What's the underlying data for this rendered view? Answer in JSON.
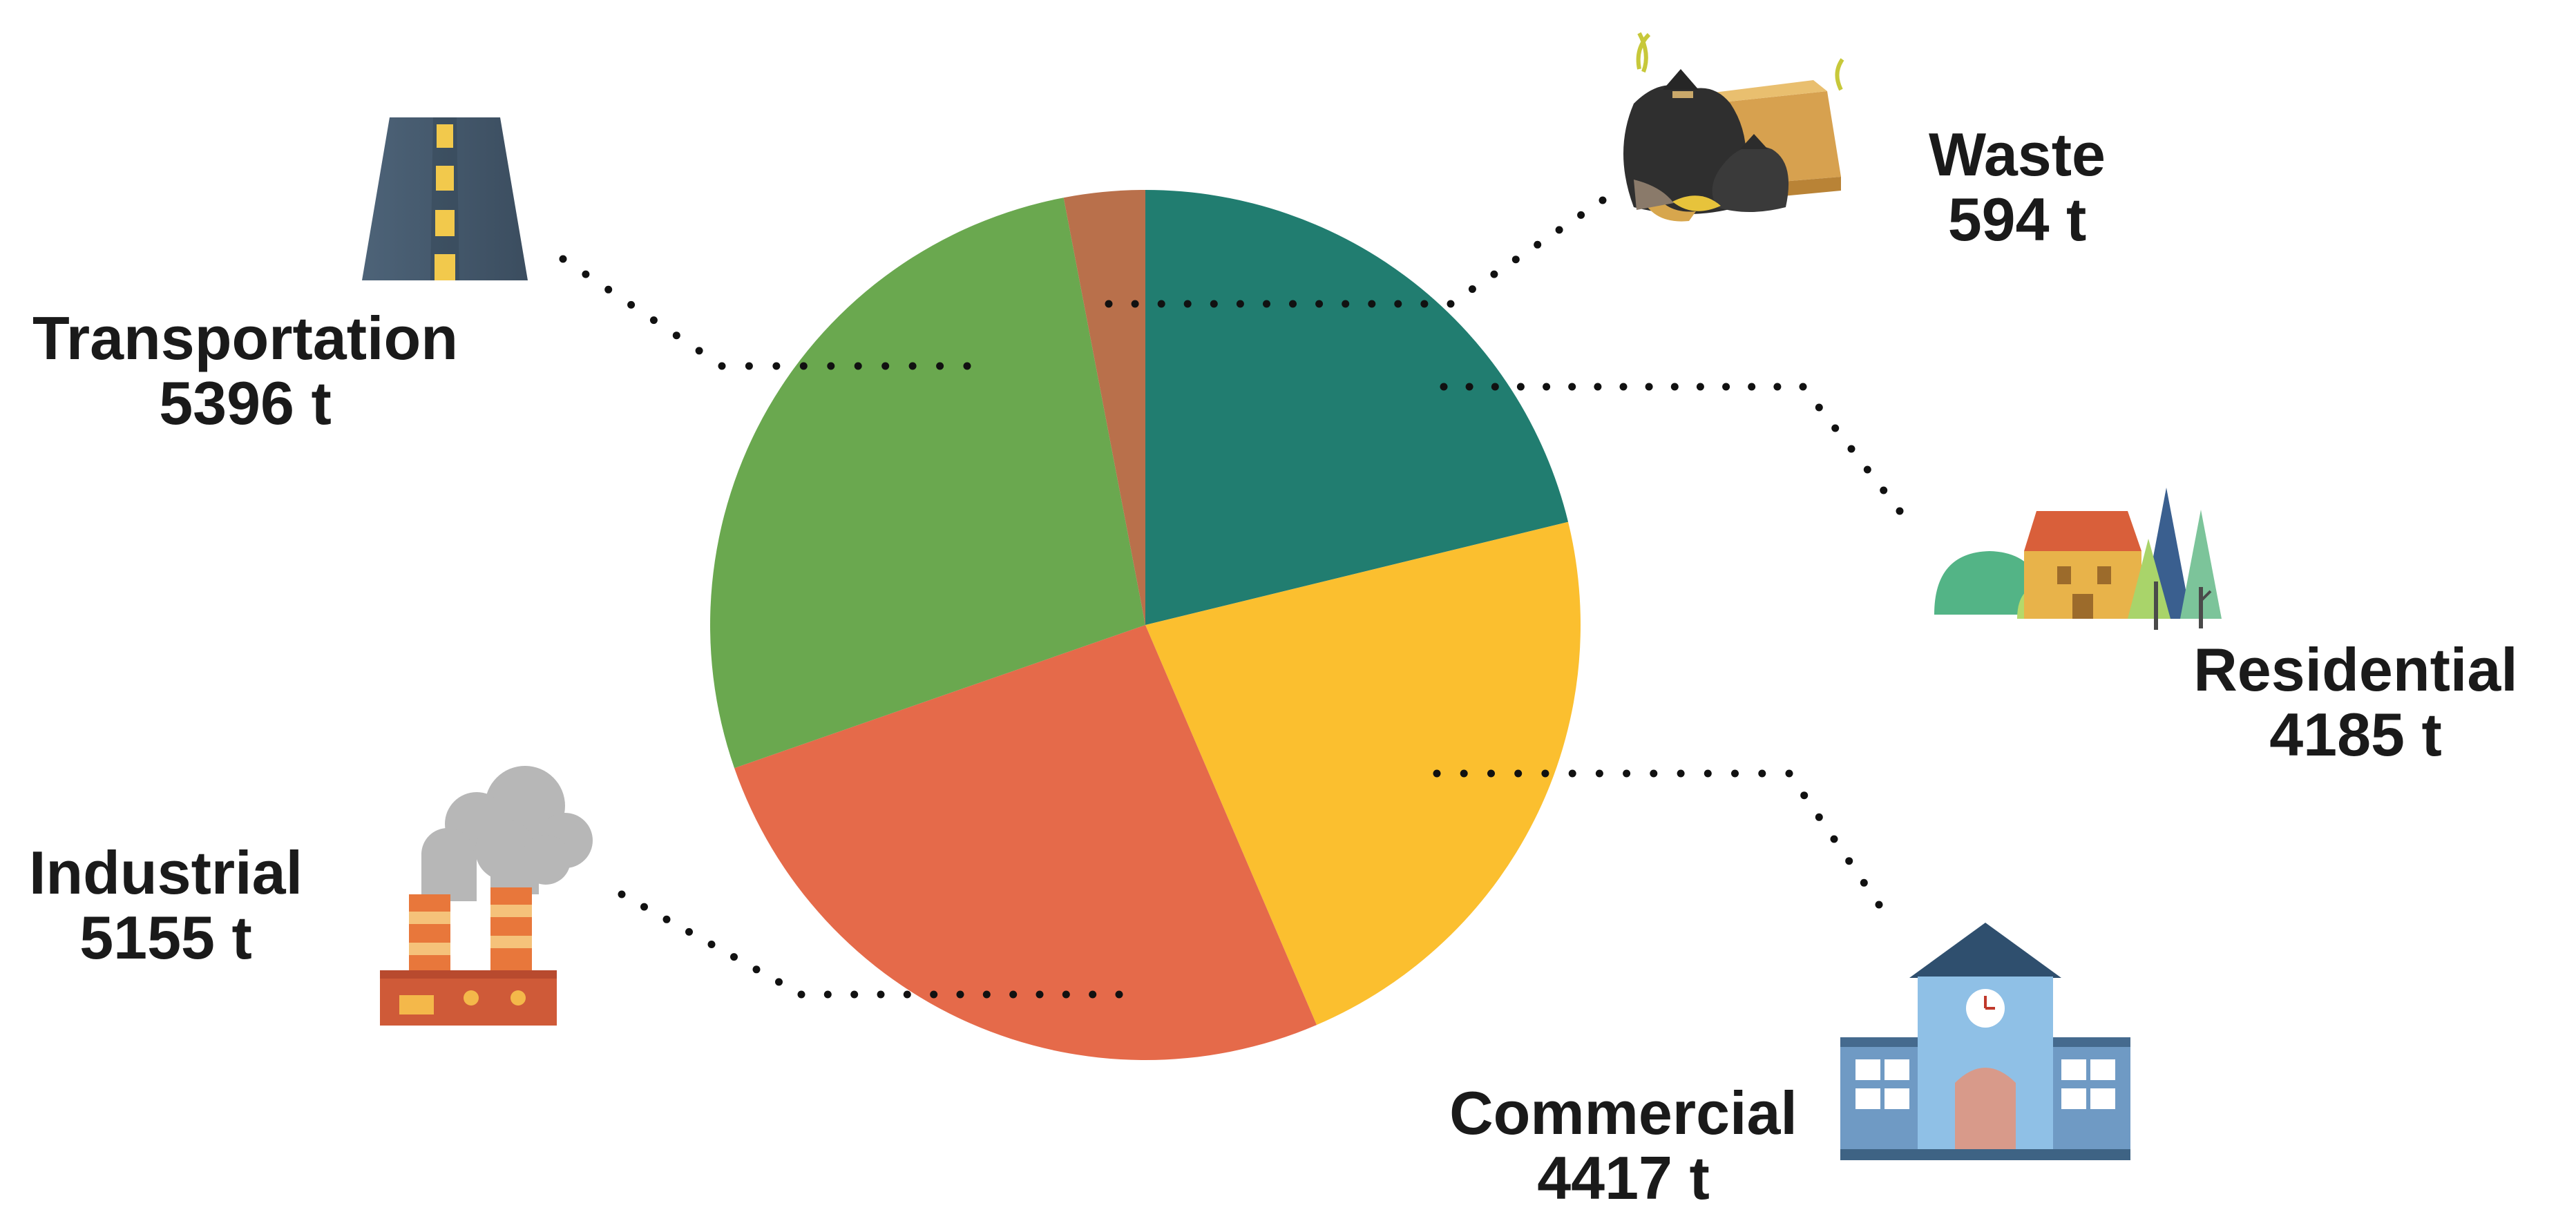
{
  "chart_data": {
    "type": "pie",
    "unit": "t",
    "categories": [
      "Residential",
      "Commercial",
      "Industrial",
      "Transportation",
      "Waste"
    ],
    "values": [
      4185,
      4417,
      5155,
      5396,
      594
    ],
    "display_values": [
      "4185 t",
      "4417 t",
      "5155 t",
      "5396 t",
      "594 t"
    ],
    "colors": [
      "#217d70",
      "#fbbf2f",
      "#e56a4a",
      "#6aa84f",
      "#b9704b"
    ],
    "icons": [
      "houses-and-trees-icon",
      "school-building-icon",
      "factory-icon",
      "road-icon",
      "garbage-bags-icon"
    ]
  }
}
